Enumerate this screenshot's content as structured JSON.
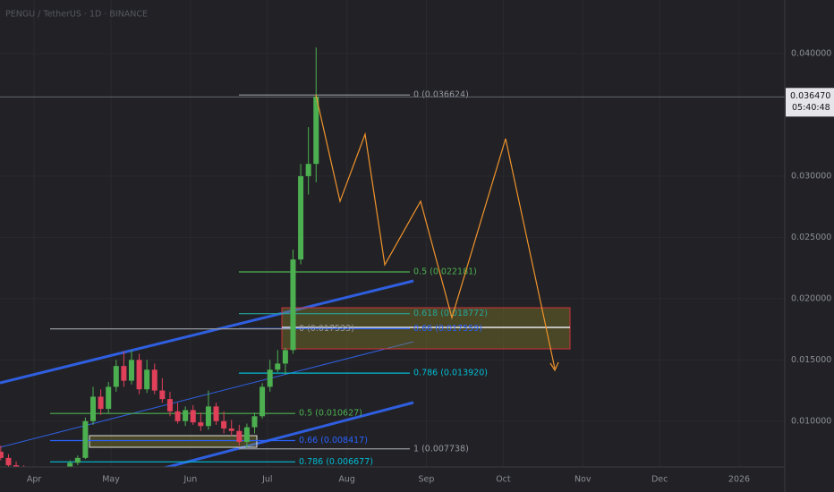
{
  "chart_data": {
    "type": "candlestick",
    "title": "PENGU / TetherUS · 1D · BINANCE",
    "last_price": {
      "value": 0.03647,
      "label": "0.036470"
    },
    "countdown": "05:40:48",
    "x": [
      77,
      80,
      83,
      86,
      89,
      92,
      95,
      98,
      101,
      104,
      107,
      110,
      113,
      116,
      119,
      122,
      125,
      128,
      131,
      134,
      137,
      140,
      143,
      146,
      149,
      152,
      155,
      158,
      161,
      164,
      167,
      170,
      173,
      176,
      179,
      182,
      185,
      188,
      191,
      194,
      197,
      200
    ],
    "open": [
      0.0075,
      0.007,
      0.0064,
      0.006,
      0.0058,
      0.0055,
      0.0057,
      0.0054,
      0.0056,
      0.0061,
      0.0066,
      0.007,
      0.01,
      0.012,
      0.011,
      0.0128,
      0.0145,
      0.0133,
      0.015,
      0.0126,
      0.0142,
      0.0125,
      0.0118,
      0.0108,
      0.01,
      0.0109,
      0.0099,
      0.0096,
      0.0112,
      0.01,
      0.0094,
      0.0092,
      0.0083,
      0.0095,
      0.0104,
      0.0128,
      0.0142,
      0.0147,
      0.0158,
      0.0232,
      0.03,
      0.031
    ],
    "high": [
      0.008,
      0.0073,
      0.0067,
      0.0064,
      0.0061,
      0.0059,
      0.006,
      0.0058,
      0.0063,
      0.0068,
      0.0072,
      0.0103,
      0.0128,
      0.0126,
      0.0132,
      0.015,
      0.0157,
      0.0158,
      0.0155,
      0.015,
      0.0147,
      0.0135,
      0.0124,
      0.0115,
      0.0112,
      0.0113,
      0.0107,
      0.0125,
      0.0115,
      0.0108,
      0.0101,
      0.0097,
      0.0098,
      0.0107,
      0.0131,
      0.015,
      0.0158,
      0.016,
      0.024,
      0.031,
      0.034,
      0.0405
    ],
    "low": [
      0.0068,
      0.0062,
      0.0058,
      0.0055,
      0.0052,
      0.005,
      0.0053,
      0.0051,
      0.0054,
      0.0058,
      0.0064,
      0.0069,
      0.0097,
      0.0105,
      0.0106,
      0.0124,
      0.0128,
      0.013,
      0.0122,
      0.0123,
      0.0122,
      0.0115,
      0.0104,
      0.0098,
      0.0096,
      0.0097,
      0.0092,
      0.0093,
      0.0097,
      0.009,
      0.0088,
      0.008,
      0.0078,
      0.009,
      0.0102,
      0.0124,
      0.014,
      0.0138,
      0.0155,
      0.0228,
      0.0285,
      0.0295
    ],
    "close": [
      0.007,
      0.0064,
      0.006,
      0.0058,
      0.0055,
      0.0057,
      0.0054,
      0.0056,
      0.0061,
      0.0066,
      0.007,
      0.01,
      0.012,
      0.011,
      0.0128,
      0.0145,
      0.0133,
      0.015,
      0.0126,
      0.0142,
      0.0125,
      0.0118,
      0.0108,
      0.01,
      0.0109,
      0.0099,
      0.0096,
      0.0112,
      0.01,
      0.0094,
      0.0092,
      0.0083,
      0.0095,
      0.0104,
      0.0128,
      0.0142,
      0.0147,
      0.0158,
      0.0232,
      0.03,
      0.031,
      0.0365
    ],
    "up_color": "#4caf50",
    "down_color": "#e0405a",
    "xlim": [
      76.7,
      382.8
    ],
    "xticks": [
      {
        "value": 90,
        "label": "Apr"
      },
      {
        "value": 120,
        "label": "May"
      },
      {
        "value": 151,
        "label": "Jun"
      },
      {
        "value": 181,
        "label": "Jul"
      },
      {
        "value": 212,
        "label": "Aug"
      },
      {
        "value": 243,
        "label": "Sep"
      },
      {
        "value": 273,
        "label": "Oct"
      },
      {
        "value": 304,
        "label": "Nov"
      },
      {
        "value": 334,
        "label": "Dec"
      },
      {
        "value": 365,
        "label": "2026"
      }
    ],
    "ylim": [
      0.00626,
      0.04438
    ],
    "yticks": [
      {
        "value": 0.01,
        "label": "0.010000"
      },
      {
        "value": 0.015,
        "label": "0.015000"
      },
      {
        "value": 0.02,
        "label": "0.020000"
      },
      {
        "value": 0.025,
        "label": "0.025000"
      },
      {
        "value": 0.03,
        "label": "0.030000"
      },
      {
        "value": 0.04,
        "label": "0.040000"
      }
    ],
    "fib_upper": [
      {
        "label": "0 (0.036624)",
        "price": 0.036624,
        "color": "#9598a1"
      },
      {
        "label": "0.5 (0.022181)",
        "price": 0.022181,
        "color": "#4caf50"
      },
      {
        "label": "0.618 (0.018772)",
        "price": 0.018772,
        "color": "#26a69a"
      },
      {
        "label": "0.66 (0.017559)",
        "price": 0.017559,
        "color": "#2962ff"
      },
      {
        "label": "0.786 (0.013920)",
        "price": 0.01392,
        "color": "#00bcd4"
      },
      {
        "label": "1 (0.007738)",
        "price": 0.007738,
        "color": "#9598a1"
      }
    ],
    "fib_lower": [
      {
        "label": "0 (0.017533)",
        "price": 0.017533,
        "color": "#9598a1"
      },
      {
        "label": "0.5 (0.010627)",
        "price": 0.010627,
        "color": "#4caf50"
      },
      {
        "label": "0.66 (0.008417)",
        "price": 0.008417,
        "color": "#2962ff"
      },
      {
        "label": "0.786 (0.006677)",
        "price": 0.006677,
        "color": "#00bcd4"
      }
    ]
  }
}
